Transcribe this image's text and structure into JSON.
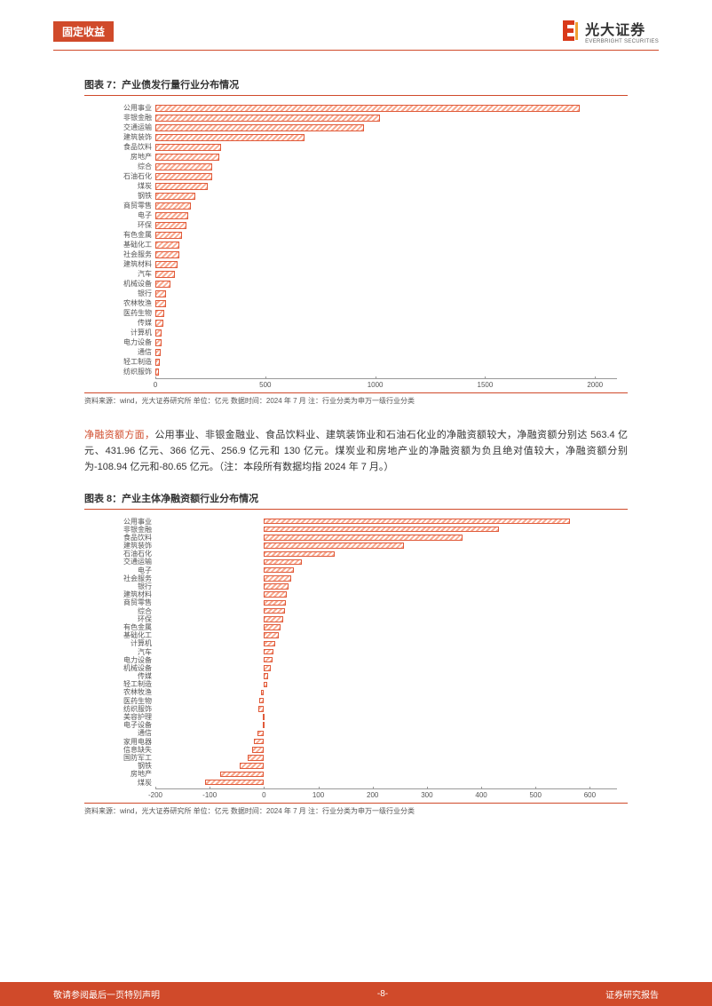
{
  "header": {
    "category": "固定收益",
    "logo_cn": "光大证券",
    "logo_en": "EVERBRIGHT SECURITIES"
  },
  "chart7": {
    "title": "图表 7：产业债发行量行业分布情况",
    "type": "bar_horizontal",
    "bar_fill": "#f8a98f",
    "bar_border": "#e05a3a",
    "xmin": 0,
    "xmax": 2100,
    "xticks": [
      0,
      500,
      1000,
      1500,
      2000
    ],
    "categories": [
      "公用事业",
      "非银金融",
      "交通运输",
      "建筑装饰",
      "食品饮料",
      "房地产",
      "综合",
      "石油石化",
      "煤炭",
      "钢铁",
      "商贸零售",
      "电子",
      "环保",
      "有色金属",
      "基础化工",
      "社会服务",
      "建筑材料",
      "汽车",
      "机械设备",
      "银行",
      "农林牧渔",
      "医药生物",
      "传媒",
      "计算机",
      "电力设备",
      "通信",
      "轻工制造",
      "纺织服饰"
    ],
    "values": [
      1930,
      1020,
      950,
      680,
      300,
      290,
      260,
      260,
      240,
      180,
      160,
      150,
      140,
      120,
      110,
      110,
      100,
      90,
      70,
      50,
      50,
      40,
      35,
      30,
      30,
      25,
      20,
      15
    ],
    "source": "资料来源：wind，光大证券研究所    单位：亿元    数据时间：2024 年 7 月    注：行业分类为申万一级行业分类"
  },
  "paragraph": {
    "lead": "净融资额方面，",
    "body": "公用事业、非银金融业、食品饮料业、建筑装饰业和石油石化业的净融资额较大，净融资额分别达 563.4 亿元、431.96 亿元、366 亿元、256.9 亿元和 130 亿元。煤炭业和房地产业的净融资额为负且绝对值较大，净融资额分别为-108.94 亿元和-80.65 亿元。（注：本段所有数据均指 2024 年 7 月。）"
  },
  "chart8": {
    "title": "图表 8：产业主体净融资额行业分布情况",
    "type": "bar_horizontal_diverging",
    "bar_fill": "#f8a98f",
    "bar_border": "#e05a3a",
    "xmin": -200,
    "xmax": 650,
    "xticks": [
      -200,
      -100,
      0,
      100,
      200,
      300,
      400,
      500,
      600
    ],
    "categories": [
      "公用事业",
      "非银金融",
      "食品饮料",
      "建筑装饰",
      "石油石化",
      "交通运输",
      "电子",
      "社会服务",
      "银行",
      "建筑材料",
      "商贸零售",
      "综合",
      "环保",
      "有色金属",
      "基础化工",
      "计算机",
      "汽车",
      "电力设备",
      "机械设备",
      "传媒",
      "轻工制造",
      "农林牧渔",
      "医药生物",
      "纺织服饰",
      "美容护理",
      "电子设备",
      "通信",
      "家用电器",
      "信息缺失",
      "国防军工",
      "钢铁",
      "房地产",
      "煤炭"
    ],
    "values": [
      563,
      432,
      366,
      257,
      130,
      70,
      55,
      50,
      45,
      42,
      40,
      38,
      35,
      30,
      28,
      20,
      18,
      16,
      12,
      8,
      6,
      -5,
      -8,
      -10,
      -3,
      -2,
      -12,
      -18,
      -22,
      -30,
      -45,
      -81,
      -109
    ],
    "source": "资料来源：wind，光大证券研究所    单位：亿元    数据时间：2024 年 7 月    注：行业分类为申万一级行业分类"
  },
  "footer": {
    "left": "敬请参阅最后一页特别声明",
    "center": "-8-",
    "right": "证券研究报告"
  }
}
